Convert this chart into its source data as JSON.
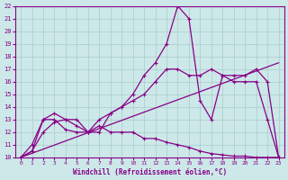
{
  "xlabel": "Windchill (Refroidissement éolien,°C)",
  "bg_color": "#cce8e8",
  "line_color": "#880088",
  "grid_color": "#aacccc",
  "xlim": [
    -0.5,
    23.5
  ],
  "ylim": [
    10,
    22
  ],
  "xticks": [
    0,
    1,
    2,
    3,
    4,
    5,
    6,
    7,
    8,
    9,
    10,
    11,
    12,
    13,
    14,
    15,
    16,
    17,
    18,
    19,
    20,
    21,
    22,
    23
  ],
  "yticks": [
    10,
    11,
    12,
    13,
    14,
    15,
    16,
    17,
    18,
    19,
    20,
    21,
    22
  ],
  "line1_x": [
    0,
    1,
    2,
    3,
    4,
    5,
    6,
    7,
    8,
    9,
    10,
    11,
    12,
    13,
    14,
    15,
    16,
    17,
    18,
    19,
    20,
    21,
    22,
    23
  ],
  "line1_y": [
    10,
    10.5,
    12,
    12.8,
    13,
    12.5,
    12,
    12.5,
    12,
    12,
    12,
    11.5,
    11.5,
    11.2,
    11.0,
    10.8,
    10.5,
    10.3,
    10.2,
    10.1,
    10.1,
    10.0,
    10.0,
    10.0
  ],
  "line2_x": [
    0,
    1,
    2,
    3,
    4,
    5,
    6,
    7,
    8,
    9,
    10,
    11,
    12,
    13,
    14,
    15,
    16,
    17,
    18,
    19,
    20,
    21,
    22,
    23
  ],
  "line2_y": [
    10,
    10.5,
    13,
    13,
    12.2,
    12,
    12,
    12,
    13.5,
    14,
    15,
    16.5,
    17.5,
    19,
    22,
    21,
    14.5,
    13,
    16.5,
    16,
    16,
    16,
    13,
    10
  ],
  "line3_x": [
    0,
    1,
    2,
    3,
    4,
    5,
    6,
    7,
    8,
    9,
    10,
    11,
    12,
    13,
    14,
    15,
    16,
    17,
    18,
    19,
    20,
    21,
    22,
    23
  ],
  "line3_y": [
    10,
    11,
    13,
    13.5,
    13,
    13,
    12,
    13,
    13.5,
    14,
    14.5,
    15,
    16,
    17,
    17,
    16.5,
    16.5,
    17,
    16.5,
    16.5,
    16.5,
    17,
    16,
    10
  ],
  "line4_x": [
    0,
    23
  ],
  "line4_y": [
    10,
    17.5
  ]
}
